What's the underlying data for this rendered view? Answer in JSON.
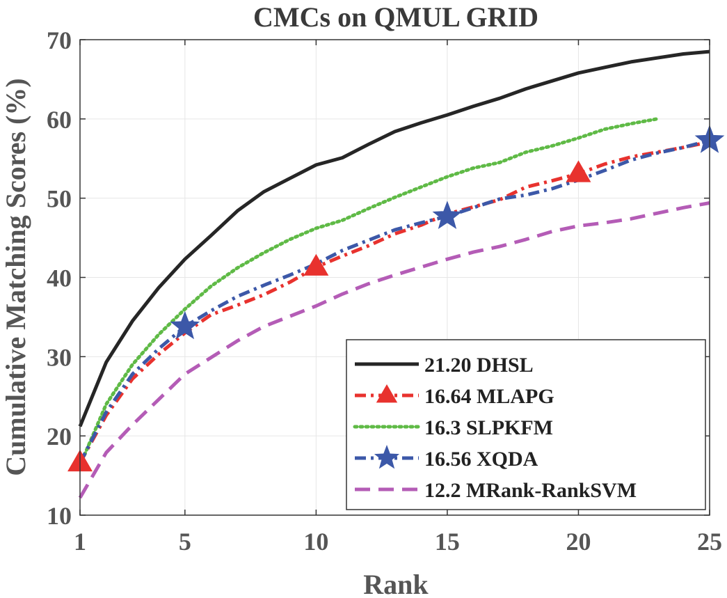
{
  "chart_data": {
    "type": "line",
    "title": "CMCs on QMUL GRID",
    "xlabel": "Rank",
    "ylabel": "Cumulative Matching Scores (%)",
    "xlim": [
      1,
      25
    ],
    "ylim": [
      10,
      70
    ],
    "xticks": [
      1,
      5,
      10,
      15,
      20,
      25
    ],
    "yticks": [
      10,
      20,
      30,
      40,
      50,
      60,
      70
    ],
    "grid": true,
    "legend_position": "bottom-right",
    "series": [
      {
        "name": "21.20 DHSL",
        "color": "#262626",
        "style": "solid",
        "marker": "none",
        "x": [
          1,
          2,
          3,
          4,
          5,
          6,
          7,
          8,
          9,
          10,
          11,
          12,
          13,
          14,
          15,
          16,
          17,
          18,
          19,
          20,
          21,
          22,
          23,
          24,
          25
        ],
        "y": [
          21.2,
          29.3,
          34.5,
          38.7,
          42.3,
          45.3,
          48.4,
          50.8,
          52.5,
          54.2,
          55.1,
          56.8,
          58.4,
          59.5,
          60.5,
          61.6,
          62.6,
          63.8,
          64.8,
          65.8,
          66.5,
          67.2,
          67.7,
          68.2,
          68.5
        ]
      },
      {
        "name": "16.64 MLAPG",
        "color": "#e8322e",
        "style": "dashdot",
        "marker": "triangle",
        "marker_x": [
          1,
          10,
          20
        ],
        "x": [
          1,
          2,
          3,
          4,
          5,
          6,
          7,
          8,
          9,
          10,
          11,
          12,
          13,
          14,
          15,
          16,
          17,
          18,
          19,
          20,
          21,
          22,
          23,
          24,
          25
        ],
        "y": [
          16.6,
          22.6,
          27.2,
          30.3,
          33.0,
          35.3,
          36.5,
          37.8,
          39.4,
          41.3,
          42.7,
          44.0,
          45.5,
          46.6,
          48.0,
          48.9,
          49.8,
          51.4,
          52.2,
          53.1,
          54.3,
          55.2,
          55.8,
          56.4,
          57.1
        ]
      },
      {
        "name": "16.3 SLPKFM",
        "color": "#5fba46",
        "style": "dotted",
        "marker": "none",
        "x": [
          1,
          2,
          3,
          4,
          5,
          6,
          7,
          8,
          9,
          10,
          11,
          12,
          13,
          14,
          15,
          16,
          17,
          18,
          19,
          20,
          21,
          22,
          23
        ],
        "y": [
          16.3,
          24.0,
          29.0,
          32.8,
          36.0,
          38.9,
          41.2,
          43.1,
          44.8,
          46.2,
          47.2,
          48.7,
          50.1,
          51.4,
          52.7,
          53.8,
          54.5,
          55.8,
          56.6,
          57.6,
          58.7,
          59.4,
          60.0
        ]
      },
      {
        "name": "16.56 XQDA",
        "color": "#3c58a8",
        "style": "dashdot",
        "marker": "star",
        "marker_x": [
          5,
          15,
          25
        ],
        "x": [
          1,
          2,
          3,
          4,
          5,
          6,
          7,
          8,
          9,
          10,
          11,
          12,
          13,
          14,
          15,
          16,
          17,
          18,
          19,
          20,
          21,
          22,
          23,
          24,
          25
        ],
        "y": [
          16.6,
          23.0,
          27.8,
          31.0,
          33.8,
          35.8,
          37.6,
          39.0,
          40.3,
          41.7,
          43.4,
          44.7,
          46.0,
          46.9,
          47.7,
          48.8,
          49.9,
          50.4,
          51.2,
          52.3,
          53.5,
          54.8,
          55.7,
          56.4,
          57.3
        ]
      },
      {
        "name": "12.2 MRank-RankSVM",
        "color": "#b45cb6",
        "style": "dashed",
        "marker": "none",
        "x": [
          1,
          2,
          3,
          4,
          5,
          6,
          7,
          8,
          9,
          10,
          11,
          12,
          13,
          14,
          15,
          16,
          17,
          18,
          19,
          20,
          21,
          22,
          23,
          24,
          25
        ],
        "y": [
          12.2,
          17.9,
          21.4,
          24.6,
          27.8,
          29.9,
          32.0,
          33.8,
          35.1,
          36.4,
          37.9,
          39.2,
          40.3,
          41.3,
          42.3,
          43.2,
          43.9,
          44.8,
          45.8,
          46.5,
          46.9,
          47.4,
          48.1,
          48.8,
          49.4
        ]
      }
    ]
  }
}
